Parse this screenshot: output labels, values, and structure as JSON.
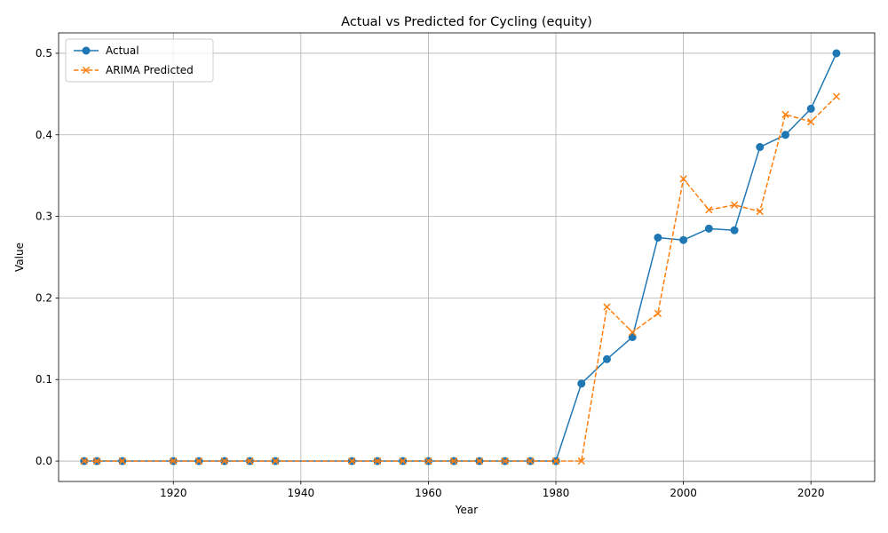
{
  "chart_data": {
    "type": "line",
    "title": "Actual vs Predicted for Cycling (equity)",
    "xlabel": "Year",
    "ylabel": "Value",
    "xlim": [
      1902,
      2030
    ],
    "ylim": [
      -0.025,
      0.525
    ],
    "xticks": [
      1920,
      1940,
      1960,
      1980,
      2000,
      2020
    ],
    "yticks": [
      0.0,
      0.1,
      0.2,
      0.3,
      0.4,
      0.5
    ],
    "ytick_labels": [
      "0.0",
      "0.1",
      "0.2",
      "0.3",
      "0.4",
      "0.5"
    ],
    "grid": true,
    "legend_position": "top-left",
    "x": [
      1906,
      1908,
      1912,
      1920,
      1924,
      1928,
      1932,
      1936,
      1948,
      1952,
      1956,
      1960,
      1964,
      1968,
      1972,
      1976,
      1980,
      1984,
      1988,
      1992,
      1996,
      2000,
      2004,
      2008,
      2012,
      2016,
      2020,
      2024
    ],
    "series": [
      {
        "name": "Actual",
        "color": "#1f77b4",
        "marker": "circle",
        "linestyle": "solid",
        "values": [
          0,
          0,
          0,
          0,
          0,
          0,
          0,
          0,
          0,
          0,
          0,
          0,
          0,
          0,
          0,
          0,
          0,
          0.095,
          0.125,
          0.152,
          0.274,
          0.271,
          0.285,
          0.283,
          0.385,
          0.4,
          0.432,
          0.5
        ]
      },
      {
        "name": "ARIMA Predicted",
        "color": "#ff7f0e",
        "marker": "x",
        "linestyle": "dashed",
        "values": [
          0,
          0,
          0,
          0,
          0,
          0,
          0,
          0,
          0,
          0,
          0,
          0,
          0,
          0,
          0,
          0,
          0,
          0,
          0.189,
          0.158,
          0.181,
          0.346,
          0.308,
          0.314,
          0.306,
          0.425,
          0.416,
          0.447
        ]
      }
    ]
  }
}
